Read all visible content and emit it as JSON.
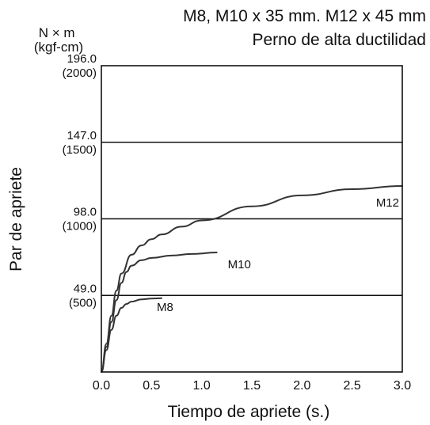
{
  "header": {
    "cropped_fragment": "",
    "line1": "M8, M10 x 35 mm. M12 x 45 mm",
    "line2": "Perno de alta ductilidad"
  },
  "chart_data": {
    "type": "line",
    "title": "Perno de alta ductilidad",
    "xlabel": "Tiempo de apriete (s.)",
    "ylabel": "Par de apriete",
    "y_unit_label": [
      "N × m",
      "(kgf-cm)"
    ],
    "xlim": [
      0,
      3.0
    ],
    "ylim": [
      0,
      196.0
    ],
    "grid": "horizontal",
    "legend": "inline-labels",
    "x_ticks": [
      "0.0",
      "0.5",
      "1.0",
      "1.5",
      "2.0",
      "2.5",
      "3.0"
    ],
    "y_ticks": [
      {
        "value": 49.0,
        "label": "49.0",
        "sublabel": "(500)"
      },
      {
        "value": 98.0,
        "label": "98.0",
        "sublabel": "(1000)"
      },
      {
        "value": 147.0,
        "label": "147.0",
        "sublabel": "(1500)"
      },
      {
        "value": 196.0,
        "label": "196.0",
        "sublabel": "(2000)"
      }
    ],
    "series": [
      {
        "name": "M8",
        "x": [
          0.0,
          0.05,
          0.1,
          0.15,
          0.2,
          0.25,
          0.3,
          0.4,
          0.5,
          0.6
        ],
        "y": [
          0,
          14,
          27,
          36,
          41,
          43.5,
          45,
          46.5,
          47,
          47.2
        ]
      },
      {
        "name": "M10",
        "x": [
          0.0,
          0.05,
          0.1,
          0.15,
          0.2,
          0.25,
          0.3,
          0.4,
          0.5,
          0.7,
          0.9,
          1.15
        ],
        "y": [
          0,
          16,
          32,
          46,
          57,
          64,
          68,
          71.5,
          73,
          74.5,
          75.5,
          76.5
        ]
      },
      {
        "name": "M12",
        "x": [
          0.0,
          0.05,
          0.1,
          0.15,
          0.2,
          0.3,
          0.4,
          0.5,
          0.6,
          0.8,
          1.0,
          1.5,
          2.0,
          2.5,
          3.0
        ],
        "y": [
          0,
          18,
          36,
          52,
          63,
          75,
          81,
          85,
          88,
          93,
          97,
          106,
          113,
          117,
          119
        ]
      }
    ]
  }
}
